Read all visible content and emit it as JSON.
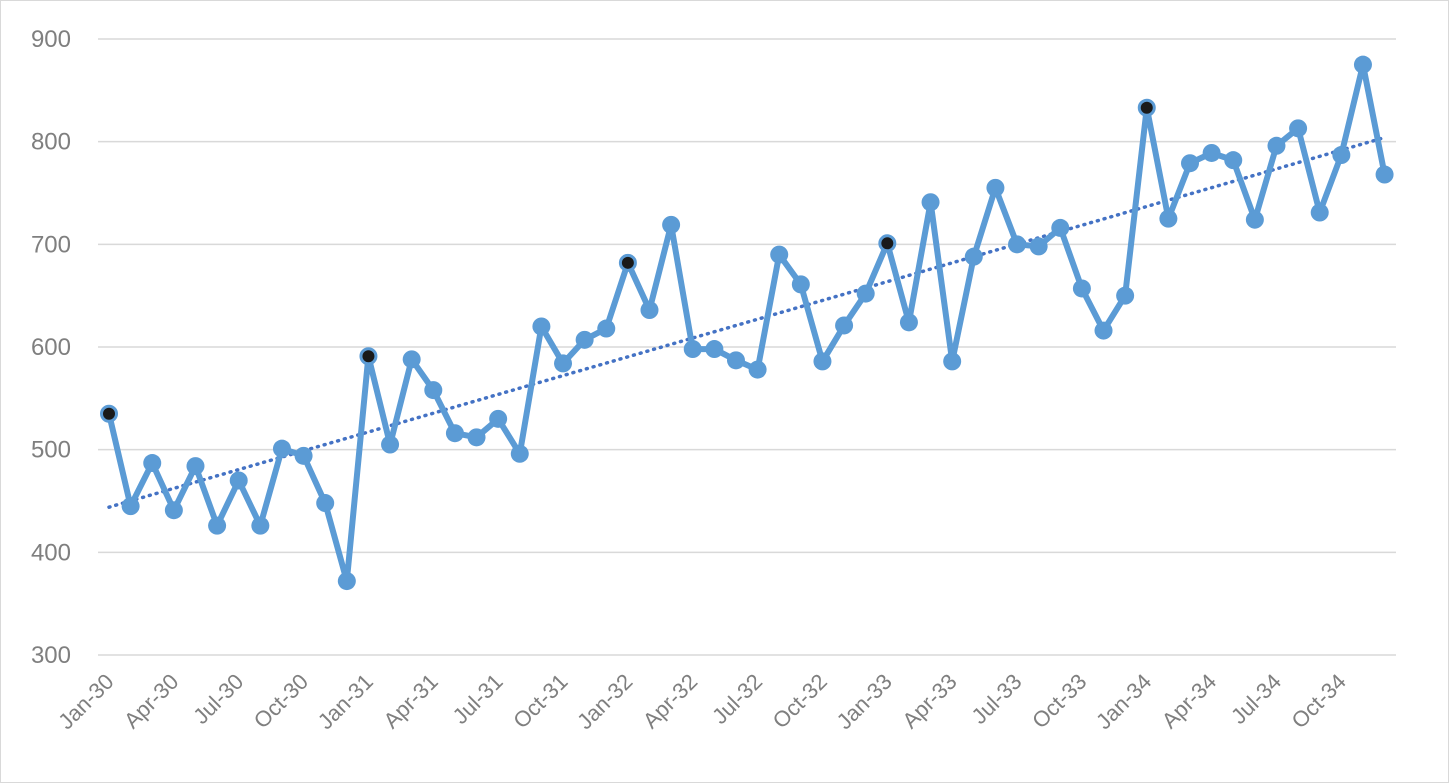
{
  "chart_data": {
    "type": "line",
    "title": "",
    "xlabel": "",
    "ylabel": "",
    "ylim": [
      300,
      900
    ],
    "yticks": [
      300,
      400,
      500,
      600,
      700,
      800,
      900
    ],
    "x_tick_labels": [
      "Jan-30",
      "Apr-30",
      "Jul-30",
      "Oct-30",
      "Jan-31",
      "Apr-31",
      "Jul-31",
      "Oct-31",
      "Jan-32",
      "Apr-32",
      "Jul-32",
      "Oct-32",
      "Jan-33",
      "Apr-33",
      "Jul-33",
      "Oct-33",
      "Jan-34",
      "Apr-34",
      "Jul-34",
      "Oct-34"
    ],
    "grid": "horizontal",
    "legend": "none",
    "series": [
      {
        "color": "#5b9bd5",
        "marker": "circle",
        "values": [
          535,
          445,
          487,
          441,
          484,
          426,
          470,
          426,
          501,
          494,
          448,
          372,
          591,
          505,
          588,
          558,
          516,
          512,
          530,
          496,
          620,
          584,
          607,
          618,
          682,
          636,
          719,
          598,
          598,
          587,
          578,
          690,
          661,
          586,
          621,
          652,
          701,
          624,
          741,
          586,
          688,
          755,
          700,
          698,
          716,
          657,
          616,
          650,
          833,
          725,
          779,
          789,
          782,
          724,
          796,
          813,
          731,
          787,
          875,
          768
        ],
        "highlighted_points": [
          {
            "label": "Jan-30",
            "value": 535
          },
          {
            "label": "Jan-31",
            "value": 591
          },
          {
            "label": "Jan-32",
            "value": 682
          },
          {
            "label": "Jan-33",
            "value": 701
          },
          {
            "label": "Jan-34",
            "value": 833
          }
        ],
        "highlight_color": "#1a1a1a"
      }
    ],
    "trendline": {
      "type": "linear",
      "style": "dotted",
      "color": "#4472c4",
      "start_value": 444,
      "end_value": 804
    }
  }
}
